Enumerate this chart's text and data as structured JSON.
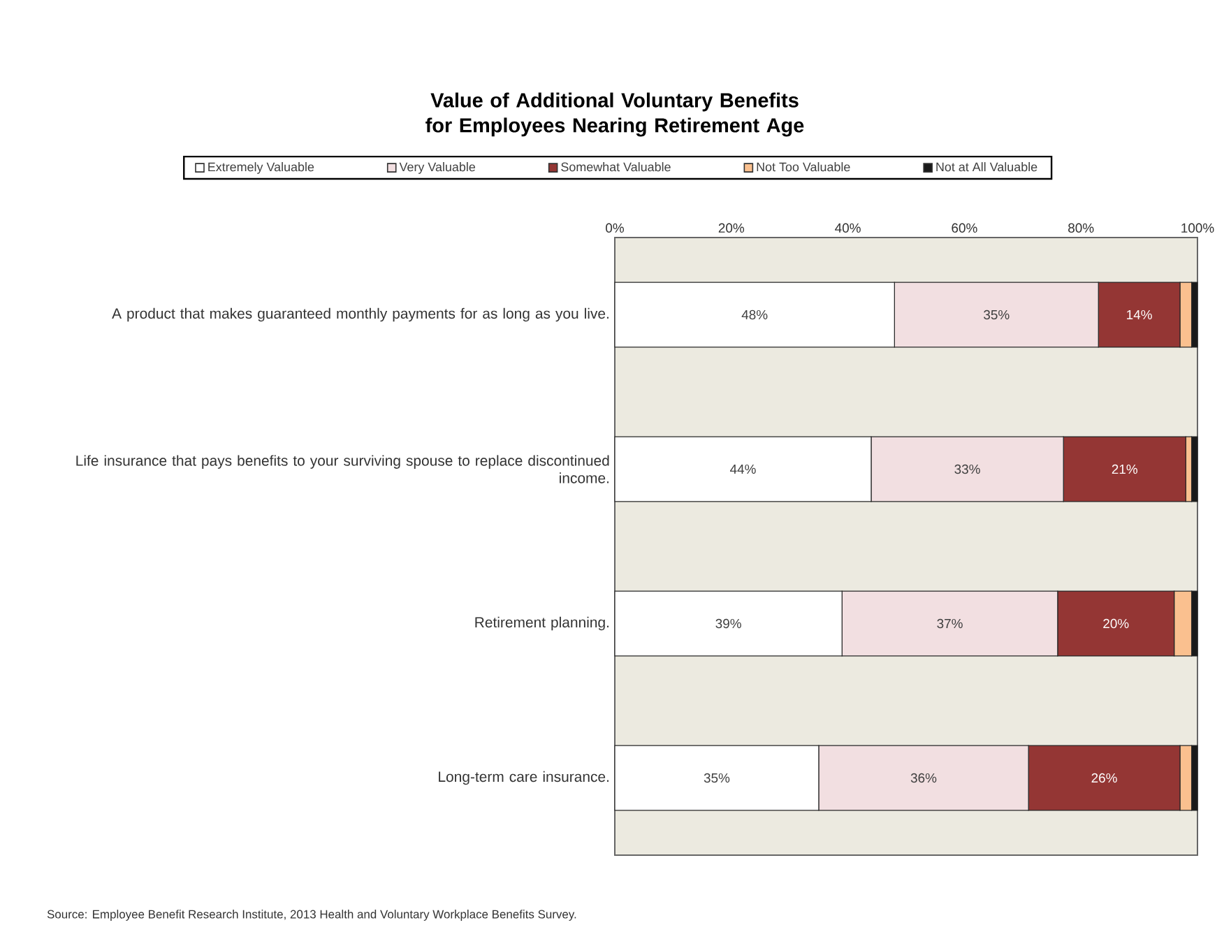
{
  "chart_data": {
    "type": "bar",
    "orientation": "horizontal",
    "stacked": true,
    "title": "Value of Additional Voluntary Benefits for Employees Nearing Retirement Age",
    "categories": [
      "A product that makes guaranteed monthly payments for as long as you live.",
      "Life insurance that pays benefits to your surviving spouse to replace discontinued income.",
      "Retirement planning.",
      "Long-term care insurance."
    ],
    "series": [
      {
        "name": "Extremely Valuable",
        "color": "#ffffff",
        "values": [
          48,
          44,
          39,
          35
        ],
        "value_labels": [
          "48%",
          "44%",
          "39%",
          "35%"
        ]
      },
      {
        "name": "Very Valuable",
        "color": "#f2dfe1",
        "values": [
          35,
          33,
          37,
          36
        ],
        "value_labels": [
          "35%",
          "33%",
          "37%",
          "36%"
        ]
      },
      {
        "name": "Somewhat Valuable",
        "color": "#943634",
        "values": [
          14,
          21,
          20,
          26
        ],
        "value_labels": [
          "14%",
          "21%",
          "20%",
          "26%"
        ]
      },
      {
        "name": "Not Too Valuable",
        "color": "#fac08f",
        "values": [
          2,
          1,
          3,
          2
        ]
      },
      {
        "name": "Not at All Valuable",
        "color": "#1a1a1a",
        "values": [
          1,
          1,
          1,
          1
        ]
      }
    ],
    "xlim": [
      0,
      100
    ],
    "xticks": [
      {
        "value": 0,
        "label": "0%"
      },
      {
        "value": 20,
        "label": "20%"
      },
      {
        "value": 40,
        "label": "40%"
      },
      {
        "value": 60,
        "label": "60%"
      },
      {
        "value": 80,
        "label": "80%"
      },
      {
        "value": 100,
        "label": "100%"
      }
    ],
    "legend": "top",
    "annotations": [
      "Source: Employee Benefit Research Institute, 2013 Health and Voluntary Workplace Benefits Survey."
    ]
  }
}
